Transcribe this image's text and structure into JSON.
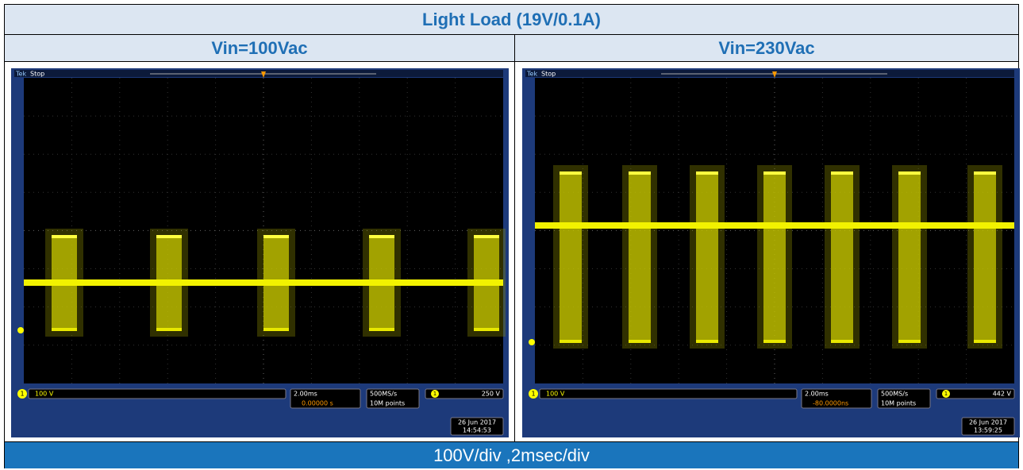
{
  "title": "Light Load  (19V/0.1A)",
  "panels": [
    {
      "header": "Vin=100Vac",
      "scope": {
        "brand": "Tek",
        "status": "Stop",
        "channel": "1",
        "channel_scale": "100 V",
        "timebase": "2.00ms",
        "trigger_position": "0.00000 s",
        "sample_rate": "500MS/s",
        "record_length": "10M points",
        "trigger_level": "250 V",
        "date": "26 Jun 2017",
        "time": "14:54:53"
      }
    },
    {
      "header": "Vin=230Vac",
      "scope": {
        "brand": "Tek",
        "status": "Stop",
        "channel": "1",
        "channel_scale": "100 V",
        "timebase": "2.00ms",
        "trigger_position": "-80.0000ns",
        "sample_rate": "500MS/s",
        "record_length": "10M points",
        "trigger_level": "442 V",
        "date": "26 Jun 2017",
        "time": "13:59:25"
      }
    }
  ],
  "footer": "100V/div ,2msec/div"
}
